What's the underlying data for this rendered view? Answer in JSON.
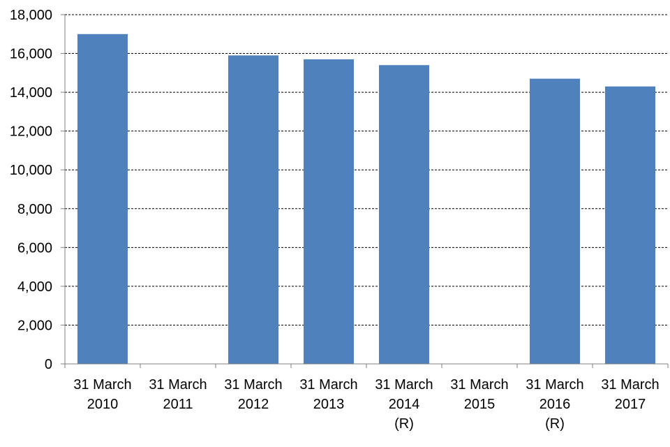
{
  "chart_data": {
    "type": "bar",
    "title": "",
    "xlabel": "",
    "ylabel": "",
    "categories": [
      [
        "31 March",
        "2010"
      ],
      [
        "31 March",
        "2011"
      ],
      [
        "31 March",
        "2012"
      ],
      [
        "31 March",
        "2013"
      ],
      [
        "31 March",
        "2014",
        "(R)"
      ],
      [
        "31 March",
        "2015"
      ],
      [
        "31 March",
        "2016",
        "(R)"
      ],
      [
        "31 March",
        "2017"
      ]
    ],
    "values": [
      17000,
      null,
      15900,
      15700,
      15400,
      null,
      14700,
      14300
    ],
    "ylim": [
      0,
      18000
    ],
    "yticks": [
      0,
      2000,
      4000,
      6000,
      8000,
      10000,
      12000,
      14000,
      16000,
      18000
    ],
    "ytick_labels": [
      "0",
      "2,000",
      "4,000",
      "6,000",
      "8,000",
      "10,000",
      "12,000",
      "14,000",
      "16,000",
      "18,000"
    ],
    "grid": "horizontal-dashed",
    "legend": "none",
    "colors": {
      "bar": "#4f81bd",
      "grid": "#000000",
      "axis": "#7f7f7f"
    }
  }
}
